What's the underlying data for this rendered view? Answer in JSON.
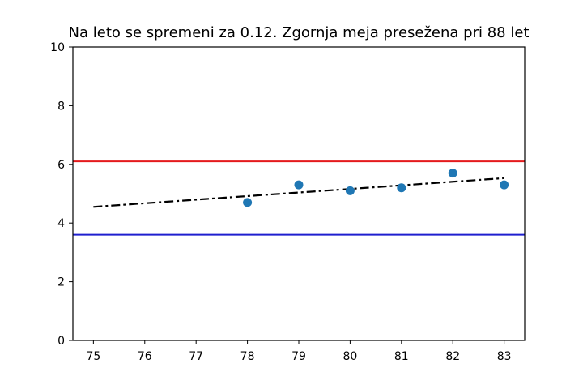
{
  "chart_data": {
    "type": "scatter",
    "title": "Na leto se spremeni za 0.12. Zgornja meja presežena pri 88 let",
    "xlabel": "",
    "ylabel": "",
    "xlim": [
      74.6,
      83.4
    ],
    "ylim": [
      0,
      10
    ],
    "x_ticks": [
      75,
      76,
      77,
      78,
      79,
      80,
      81,
      82,
      83
    ],
    "y_ticks": [
      0,
      2,
      4,
      6,
      8,
      10
    ],
    "grid": false,
    "points": {
      "x": [
        78,
        79,
        80,
        81,
        82,
        83
      ],
      "y": [
        4.7,
        5.3,
        5.1,
        5.2,
        5.7,
        5.3
      ],
      "color": "#1f77b4"
    },
    "trend_line": {
      "x": [
        75,
        83
      ],
      "y": [
        4.55,
        5.53
      ],
      "color": "#000000",
      "style": "dash-dot"
    },
    "upper_limit": {
      "y": 6.1,
      "color": "#e41a1c"
    },
    "lower_limit": {
      "y": 3.6,
      "color": "#1f1fcf"
    }
  }
}
